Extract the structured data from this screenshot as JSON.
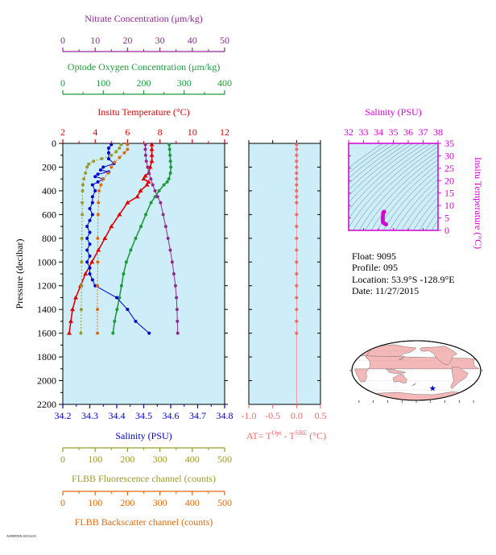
{
  "colors": {
    "nitrate": "#8e2c8e",
    "oxygen": "#1e9a3c",
    "temperature": "#e00000",
    "salinity": "#0000c8",
    "fluorescence": "#9a9a2a",
    "backscatter": "#e06a10",
    "delta_t": "#f06a6a",
    "ts_axis": "#d400d4",
    "panel_bg": "#cdeef8",
    "land": "#f4b8b8",
    "float_marker": "#0000c8"
  },
  "info": {
    "float": "Float:  9095",
    "profile": "Profile:  095",
    "location": "Location:  53.9°S  -128.9°E",
    "date": "Date:  11/27/2015"
  },
  "footer_note": "AN9095NN 20151218",
  "chart_data": [
    {
      "type": "line",
      "id": "main-profile",
      "ylabel": "Pressure (decibar)",
      "ylim": [
        2200,
        0
      ],
      "yticks": [
        0,
        200,
        400,
        600,
        800,
        1000,
        1200,
        1400,
        1600,
        1800,
        2000,
        2200
      ],
      "grid": false,
      "axes": [
        {
          "key": "nitrate",
          "label": "Nitrate Concentration (μm/kg)",
          "position": "top",
          "range": [
            0,
            50
          ],
          "ticks": [
            0,
            10,
            20,
            30,
            40,
            50
          ]
        },
        {
          "key": "oxygen",
          "label": "Optode Oxygen Concentration (μm/kg)",
          "position": "top",
          "range": [
            0,
            400
          ],
          "ticks": [
            0,
            100,
            200,
            300,
            400
          ]
        },
        {
          "key": "temperature",
          "label": "Insitu Temperature (°C)",
          "position": "top",
          "range": [
            2,
            12
          ],
          "ticks": [
            2,
            4,
            6,
            8,
            10,
            12
          ]
        },
        {
          "key": "salinity",
          "label": "Salinity (PSU)",
          "position": "bottom",
          "range": [
            34.2,
            34.8
          ],
          "ticks": [
            34.2,
            34.3,
            34.4,
            34.5,
            34.6,
            34.7,
            34.8
          ]
        },
        {
          "key": "fluorescence",
          "label": "FLBB Fluorescence channel (counts)",
          "position": "bottom",
          "range": [
            0,
            500
          ],
          "ticks": [
            0,
            100,
            200,
            300,
            400,
            500
          ]
        },
        {
          "key": "backscatter",
          "label": "FLBB Backscatter channel (counts)",
          "position": "bottom",
          "range": [
            0,
            500
          ],
          "ticks": [
            0,
            100,
            200,
            300,
            400,
            500
          ]
        }
      ],
      "series": [
        {
          "key": "temperature",
          "marker": "triangle",
          "points": [
            [
              7.5,
              10
            ],
            [
              7.5,
              50
            ],
            [
              7.5,
              100
            ],
            [
              7.5,
              150
            ],
            [
              7.4,
              200
            ],
            [
              7.3,
              250
            ],
            [
              7.1,
              275
            ],
            [
              7.0,
              300
            ],
            [
              7.3,
              325
            ],
            [
              7.2,
              350
            ],
            [
              6.8,
              400
            ],
            [
              6.6,
              450
            ],
            [
              6.0,
              500
            ],
            [
              5.5,
              600
            ],
            [
              5.0,
              700
            ],
            [
              4.6,
              800
            ],
            [
              4.2,
              900
            ],
            [
              3.8,
              1000
            ],
            [
              3.4,
              1100
            ],
            [
              3.1,
              1200
            ],
            [
              2.8,
              1300
            ],
            [
              2.6,
              1400
            ],
            [
              2.5,
              1500
            ],
            [
              2.4,
              1600
            ]
          ]
        },
        {
          "key": "oxygen",
          "marker": "circle",
          "points": [
            [
              263,
              10
            ],
            [
              264,
              50
            ],
            [
              265,
              100
            ],
            [
              266,
              150
            ],
            [
              267,
              200
            ],
            [
              266,
              250
            ],
            [
              262,
              300
            ],
            [
              258,
              325
            ],
            [
              250,
              350
            ],
            [
              238,
              400
            ],
            [
              228,
              450
            ],
            [
              218,
              500
            ],
            [
              205,
              600
            ],
            [
              193,
              700
            ],
            [
              180,
              800
            ],
            [
              168,
              900
            ],
            [
              157,
              1000
            ],
            [
              150,
              1100
            ],
            [
              145,
              1200
            ],
            [
              140,
              1300
            ],
            [
              134,
              1400
            ],
            [
              128,
              1500
            ],
            [
              124,
              1600
            ]
          ]
        },
        {
          "key": "nitrate",
          "marker": "circle",
          "points": [
            [
              25.5,
              10
            ],
            [
              25.5,
              50
            ],
            [
              25.6,
              100
            ],
            [
              25.8,
              150
            ],
            [
              26.2,
              200
            ],
            [
              26.6,
              250
            ],
            [
              27.2,
              300
            ],
            [
              27.8,
              350
            ],
            [
              28.5,
              400
            ],
            [
              29.3,
              450
            ],
            [
              30.2,
              500
            ],
            [
              31.0,
              600
            ],
            [
              31.8,
              700
            ],
            [
              32.5,
              800
            ],
            [
              33.2,
              900
            ],
            [
              33.8,
              1000
            ],
            [
              34.3,
              1100
            ],
            [
              34.8,
              1200
            ],
            [
              35.1,
              1300
            ],
            [
              35.3,
              1400
            ],
            [
              35.4,
              1500
            ],
            [
              35.5,
              1600
            ]
          ]
        },
        {
          "key": "salinity",
          "marker": "circle",
          "points": [
            [
              34.38,
              10
            ],
            [
              34.37,
              40
            ],
            [
              34.37,
              80
            ],
            [
              34.37,
              130
            ],
            [
              34.39,
              170
            ],
            [
              34.35,
              200
            ],
            [
              34.34,
              225
            ],
            [
              34.37,
              240
            ],
            [
              34.33,
              260
            ],
            [
              34.32,
              280
            ],
            [
              34.35,
              300
            ],
            [
              34.33,
              325
            ],
            [
              34.31,
              350
            ],
            [
              34.32,
              400
            ],
            [
              34.31,
              450
            ],
            [
              34.31,
              500
            ],
            [
              34.3,
              550
            ],
            [
              34.31,
              600
            ],
            [
              34.3,
              650
            ],
            [
              34.29,
              700
            ],
            [
              34.3,
              750
            ],
            [
              34.29,
              800
            ],
            [
              34.3,
              850
            ],
            [
              34.29,
              900
            ],
            [
              34.3,
              950
            ],
            [
              34.29,
              1000
            ],
            [
              34.3,
              1050
            ],
            [
              34.3,
              1100
            ],
            [
              34.31,
              1150
            ],
            [
              34.32,
              1200
            ],
            [
              34.4,
              1300
            ],
            [
              34.44,
              1400
            ],
            [
              34.47,
              1500
            ],
            [
              34.52,
              1600
            ]
          ]
        },
        {
          "key": "fluorescence",
          "marker": "circle",
          "points": [
            [
              180,
              10
            ],
            [
              175,
              40
            ],
            [
              165,
              70
            ],
            [
              150,
              100
            ],
            [
              120,
              130
            ],
            [
              95,
              150
            ],
            [
              80,
              175
            ],
            [
              75,
              200
            ],
            [
              70,
              250
            ],
            [
              65,
              300
            ],
            [
              62,
              350
            ],
            [
              61,
              400
            ],
            [
              60,
              500
            ],
            [
              60,
              600
            ],
            [
              59,
              800
            ],
            [
              58,
              1000
            ],
            [
              58,
              1200
            ],
            [
              57,
              1400
            ],
            [
              56,
              1600
            ]
          ]
        },
        {
          "key": "backscatter",
          "marker": "circle",
          "points": [
            [
              200,
              10
            ],
            [
              200,
              50
            ],
            [
              190,
              80
            ],
            [
              175,
              120
            ],
            [
              160,
              160
            ],
            [
              150,
              200
            ],
            [
              140,
              250
            ],
            [
              125,
              300
            ],
            [
              118,
              350
            ],
            [
              112,
              400
            ],
            [
              110,
              500
            ],
            [
              109,
              600
            ],
            [
              108,
              800
            ],
            [
              108,
              1000
            ],
            [
              107,
              1200
            ],
            [
              107,
              1400
            ],
            [
              107,
              1600
            ]
          ]
        }
      ]
    },
    {
      "type": "scatter",
      "id": "delta-t-profile",
      "xlabel": "AT= T^Opt - T^SBE (°C)",
      "xlabel_parts": [
        "AT= T",
        "Opt",
        " - T",
        "SBE",
        " (°C)"
      ],
      "xlim": [
        -1.0,
        0.5
      ],
      "xticks": [
        -1.0,
        -0.5,
        0.0,
        0.5
      ],
      "ylim": [
        2200,
        0
      ],
      "points": [
        [
          0.0,
          10
        ],
        [
          0.0,
          50
        ],
        [
          0.0,
          100
        ],
        [
          0.0,
          150
        ],
        [
          0.0,
          200
        ],
        [
          0.0,
          250
        ],
        [
          0.0,
          300
        ],
        [
          0.0,
          350
        ],
        [
          0.0,
          400
        ],
        [
          0.0,
          450
        ],
        [
          0.0,
          500
        ],
        [
          0.0,
          600
        ],
        [
          0.0,
          700
        ],
        [
          0.0,
          800
        ],
        [
          0.0,
          900
        ],
        [
          0.0,
          1000
        ],
        [
          0.0,
          1100
        ],
        [
          0.0,
          1200
        ],
        [
          0.0,
          1300
        ],
        [
          0.0,
          1400
        ],
        [
          0.0,
          1500
        ],
        [
          0.0,
          1600
        ]
      ]
    },
    {
      "type": "scatter",
      "id": "ts-diagram",
      "xlabel": "Salinity (PSU)",
      "ylabel": "Insitu Temperature (°C)",
      "xlim": [
        32,
        38
      ],
      "xticks": [
        32,
        33,
        34,
        35,
        36,
        37,
        38
      ],
      "ylim": [
        0,
        35
      ],
      "yticks": [
        0,
        5,
        10,
        15,
        20,
        25,
        30,
        35
      ],
      "points": [
        [
          34.38,
          7.5
        ],
        [
          34.37,
          7.5
        ],
        [
          34.37,
          7.5
        ],
        [
          34.39,
          7.4
        ],
        [
          34.35,
          7.3
        ],
        [
          34.33,
          7.1
        ],
        [
          34.32,
          7.0
        ],
        [
          34.35,
          7.3
        ],
        [
          34.33,
          7.2
        ],
        [
          34.31,
          6.8
        ],
        [
          34.32,
          6.6
        ],
        [
          34.31,
          6.0
        ],
        [
          34.3,
          5.5
        ],
        [
          34.29,
          5.0
        ],
        [
          34.29,
          4.6
        ],
        [
          34.3,
          4.2
        ],
        [
          34.29,
          3.8
        ],
        [
          34.3,
          3.4
        ],
        [
          34.32,
          3.1
        ],
        [
          34.4,
          2.8
        ],
        [
          34.44,
          2.6
        ],
        [
          34.47,
          2.5
        ],
        [
          34.52,
          2.4
        ]
      ]
    }
  ],
  "map": {
    "float_lon": -128.9,
    "float_lat": -53.9
  }
}
